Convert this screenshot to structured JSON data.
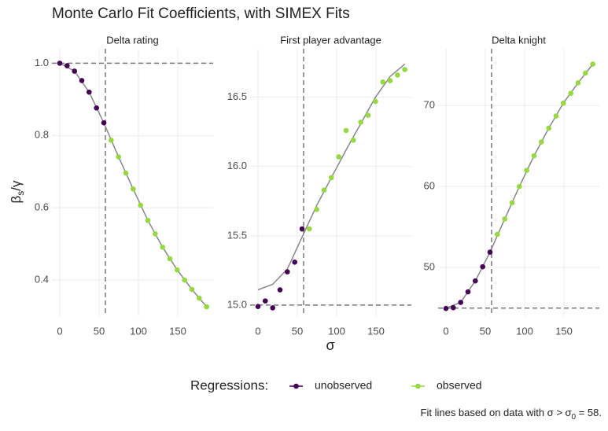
{
  "title": "Monte Carlo Fit Coefficients, with SIMEX Fits",
  "y_label": {
    "base": "β",
    "sub": "s",
    "end": "/γ"
  },
  "x_label": "σ",
  "legend": {
    "title": "Regressions:",
    "items": [
      "unobserved",
      "observed"
    ]
  },
  "caption": {
    "text": "Fit lines based on data with σ > σ",
    "sub": "0",
    "end": " = 58."
  },
  "chart_data": [
    {
      "type": "scatter",
      "title": "Delta rating",
      "xlim": [
        -10,
        195
      ],
      "ylim": [
        0.3,
        1.04
      ],
      "xticks": [
        0,
        50,
        100,
        150
      ],
      "yticks": [
        0.4,
        0.6,
        0.8,
        {
          "value": 1,
          "label": "1.0"
        }
      ],
      "grid": true,
      "hline": 1,
      "vline": 58,
      "series": [
        {
          "color": "#440154",
          "x": [
            0,
            9.3,
            18.7,
            28,
            37.3,
            46.7,
            56
          ],
          "values": [
            1.0,
            0.993,
            0.978,
            0.952,
            0.92,
            0.876,
            0.835
          ]
        },
        {
          "color": "#95d840",
          "x": [
            65.3,
            74.7,
            84,
            93.3,
            102.7,
            112,
            121.3,
            130.7,
            140,
            149.3,
            158.7,
            168,
            177.3,
            186.7
          ],
          "values": [
            0.787,
            0.741,
            0.696,
            0.652,
            0.607,
            0.565,
            0.528,
            0.491,
            0.459,
            0.428,
            0.4,
            0.374,
            0.35,
            0.326
          ]
        }
      ],
      "fit": {
        "color": "#888888",
        "x": [
          0,
          18.7,
          37.3,
          56,
          74.7,
          93.3,
          112,
          130.7,
          149.3,
          168,
          186.7
        ],
        "values": [
          1.0,
          0.978,
          0.92,
          0.835,
          0.741,
          0.652,
          0.565,
          0.491,
          0.428,
          0.374,
          0.326
        ]
      }
    },
    {
      "type": "scatter",
      "title": "First player advantage",
      "xlim": [
        -10,
        195
      ],
      "ylim": [
        14.92,
        16.85
      ],
      "xticks": [
        0,
        50,
        100,
        150
      ],
      "yticks": [
        {
          "value": 15,
          "label": "15.0"
        },
        15.5,
        {
          "value": 16,
          "label": "16.0"
        },
        16.5
      ],
      "grid": true,
      "hline": 15,
      "vline": 58,
      "series": [
        {
          "color": "#440154",
          "x": [
            0,
            9.3,
            18.7,
            28,
            37.3,
            46.7,
            56
          ],
          "values": [
            14.99,
            15.03,
            14.98,
            15.11,
            15.24,
            15.31,
            15.55
          ]
        },
        {
          "color": "#95d840",
          "x": [
            65.3,
            74.7,
            84,
            93.3,
            102.7,
            112,
            121.3,
            130.7,
            140,
            149.3,
            158.7,
            168,
            177.3,
            186.7
          ],
          "values": [
            15.55,
            15.69,
            15.83,
            15.92,
            16.07,
            16.26,
            16.19,
            16.32,
            16.37,
            16.47,
            16.61,
            16.62,
            16.66,
            16.7
          ]
        }
      ],
      "fit": {
        "color": "#888888",
        "x": [
          0,
          18.7,
          37.3,
          56,
          74.7,
          93.3,
          112,
          130.7,
          149.3,
          168,
          186.7
        ],
        "values": [
          15.11,
          15.15,
          15.26,
          15.49,
          15.72,
          15.92,
          16.12,
          16.31,
          16.5,
          16.65,
          16.74
        ]
      }
    },
    {
      "type": "scatter",
      "title": "Delta knight",
      "xlim": [
        -10,
        195
      ],
      "ylim": [
        44,
        77
      ],
      "xticks": [
        0,
        50,
        100,
        150
      ],
      "yticks": [
        50,
        60,
        70
      ],
      "grid": true,
      "hline": 45,
      "vline": 58,
      "series": [
        {
          "color": "#440154",
          "x": [
            0,
            9.3,
            18.7,
            28,
            37.3,
            46.7,
            56
          ],
          "values": [
            44.95,
            45.05,
            45.7,
            47.0,
            48.35,
            50.1,
            51.9
          ]
        },
        {
          "color": "#95d840",
          "x": [
            65.3,
            74.7,
            84,
            93.3,
            102.7,
            112,
            121.3,
            130.7,
            140,
            149.3,
            158.7,
            168,
            177.3,
            186.7
          ],
          "values": [
            54.1,
            56.0,
            58.0,
            60.0,
            62.0,
            63.8,
            65.5,
            67.2,
            68.7,
            70.3,
            71.5,
            72.8,
            74.0,
            75.1
          ]
        }
      ],
      "fit": {
        "color": "#888888",
        "x": [
          0,
          18.7,
          37.3,
          56,
          74.7,
          93.3,
          112,
          130.7,
          149.3,
          168,
          186.7
        ],
        "values": [
          45.0,
          45.7,
          48.35,
          51.9,
          56.0,
          60.0,
          63.8,
          67.2,
          70.3,
          72.8,
          75.1
        ]
      }
    }
  ]
}
